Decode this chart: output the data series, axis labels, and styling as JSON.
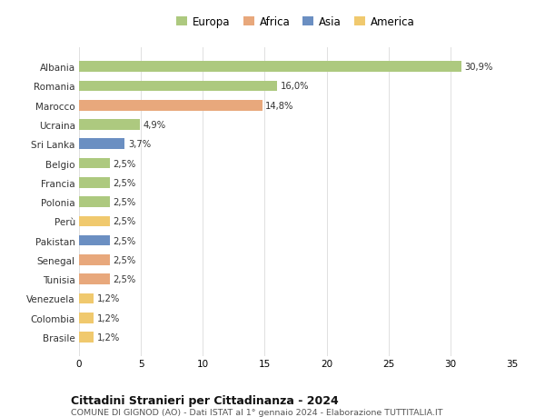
{
  "labels": [
    "Albania",
    "Romania",
    "Marocco",
    "Ucraina",
    "Sri Lanka",
    "Belgio",
    "Francia",
    "Polonia",
    "Perù",
    "Pakistan",
    "Senegal",
    "Tunisia",
    "Venezuela",
    "Colombia",
    "Brasile"
  ],
  "values": [
    30.9,
    16.0,
    14.8,
    4.9,
    3.7,
    2.5,
    2.5,
    2.5,
    2.5,
    2.5,
    2.5,
    2.5,
    1.2,
    1.2,
    1.2
  ],
  "pct_labels": [
    "30,9%",
    "16,0%",
    "14,8%",
    "4,9%",
    "3,7%",
    "2,5%",
    "2,5%",
    "2,5%",
    "2,5%",
    "2,5%",
    "2,5%",
    "2,5%",
    "1,2%",
    "1,2%",
    "1,2%"
  ],
  "colors": [
    "#adc97f",
    "#adc97f",
    "#e8a87c",
    "#adc97f",
    "#6b8fc2",
    "#adc97f",
    "#adc97f",
    "#adc97f",
    "#f0c96e",
    "#6b8fc2",
    "#e8a87c",
    "#e8a87c",
    "#f0c96e",
    "#f0c96e",
    "#f0c96e"
  ],
  "continents": [
    "Europa",
    "Africa",
    "Asia",
    "America"
  ],
  "legend_colors": [
    "#adc97f",
    "#e8a87c",
    "#6b8fc2",
    "#f0c96e"
  ],
  "xlim": [
    0,
    35
  ],
  "xticks": [
    0,
    5,
    10,
    15,
    20,
    25,
    30,
    35
  ],
  "title": "Cittadini Stranieri per Cittadinanza - 2024",
  "subtitle": "COMUNE DI GIGNOD (AO) - Dati ISTAT al 1° gennaio 2024 - Elaborazione TUTTITALIA.IT",
  "background_color": "#ffffff",
  "grid_color": "#e0e0e0"
}
